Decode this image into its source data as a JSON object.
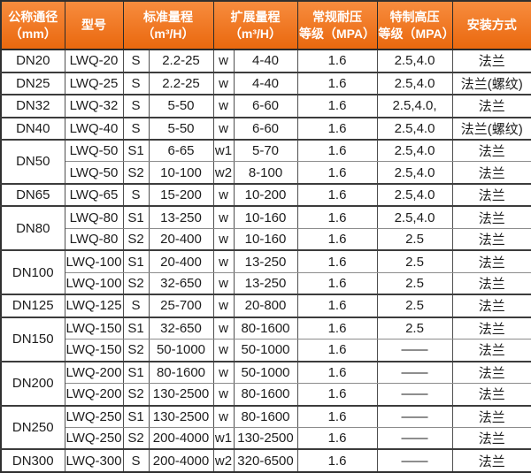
{
  "header": {
    "diameter": "公称通径\n（mm）",
    "model": "型号",
    "standard_range": "标准量程\n（m³/H）",
    "extended_range": "扩展量程\n（m³/H）",
    "normal_pressure": "常规耐压\n等级（MPA）",
    "high_pressure": "特制高压\n等级（MPA）",
    "installation": "安装方式"
  },
  "colors": {
    "header_top": "#f78c3e",
    "header_bottom": "#ea680e",
    "header_text": "#ffffff",
    "body_text": "#1d1d1d",
    "grid_dark": "#3c3c3c",
    "grid_light": "#8c8c8c"
  },
  "groups": [
    {
      "diameter": "DN20",
      "rows": [
        {
          "model": "LWQ-20",
          "standard_code": "S",
          "standard_range": "2.2-25",
          "extended_code": "w",
          "extended_range": "4-40",
          "normal_pressure": "1.6",
          "high_pressure": "2.5,4.0",
          "installation": "法兰"
        }
      ]
    },
    {
      "diameter": "DN25",
      "rows": [
        {
          "model": "LWQ-25",
          "standard_code": "S",
          "standard_range": "2.2-25",
          "extended_code": "w",
          "extended_range": "4-40",
          "normal_pressure": "1.6",
          "high_pressure": "2.5,4.0",
          "installation": "法兰(螺纹)"
        }
      ]
    },
    {
      "diameter": "DN32",
      "rows": [
        {
          "model": "LWQ-32",
          "standard_code": "S",
          "standard_range": "5-50",
          "extended_code": "w",
          "extended_range": "6-60",
          "normal_pressure": "1.6",
          "high_pressure": "2.5,4.0,",
          "installation": "法兰"
        }
      ]
    },
    {
      "diameter": "DN40",
      "rows": [
        {
          "model": "LWQ-40",
          "standard_code": "S",
          "standard_range": "5-50",
          "extended_code": "w",
          "extended_range": "6-60",
          "normal_pressure": "1.6",
          "high_pressure": "2.5,4.0",
          "installation": "法兰(螺纹)"
        }
      ]
    },
    {
      "diameter": "DN50",
      "rows": [
        {
          "model": "LWQ-50",
          "standard_code": "S1",
          "standard_range": "6-65",
          "extended_code": "w1",
          "extended_range": "5-70",
          "normal_pressure": "1.6",
          "high_pressure": "2.5,4.0",
          "installation": "法兰"
        },
        {
          "model": "LWQ-50",
          "standard_code": "S2",
          "standard_range": "10-100",
          "extended_code": "w2",
          "extended_range": "8-100",
          "normal_pressure": "1.6",
          "high_pressure": "2.5,4.0",
          "installation": "法兰"
        }
      ]
    },
    {
      "diameter": "DN65",
      "rows": [
        {
          "model": "LWQ-65",
          "standard_code": "S",
          "standard_range": "15-200",
          "extended_code": "w",
          "extended_range": "10-200",
          "normal_pressure": "1.6",
          "high_pressure": "2.5,4.0",
          "installation": "法兰"
        }
      ]
    },
    {
      "diameter": "DN80",
      "rows": [
        {
          "model": "LWQ-80",
          "standard_code": "S1",
          "standard_range": "13-250",
          "extended_code": "w",
          "extended_range": "10-160",
          "normal_pressure": "1.6",
          "high_pressure": "2.5,4.0",
          "installation": "法兰"
        },
        {
          "model": "LWQ-80",
          "standard_code": "S2",
          "standard_range": "20-400",
          "extended_code": "w",
          "extended_range": "10-160",
          "normal_pressure": "1.6",
          "high_pressure": "2.5",
          "installation": "法兰"
        }
      ]
    },
    {
      "diameter": "DN100",
      "rows": [
        {
          "model": "LWQ-100",
          "standard_code": "S1",
          "standard_range": "20-400",
          "extended_code": "w",
          "extended_range": "13-250",
          "normal_pressure": "1.6",
          "high_pressure": "2.5",
          "installation": "法兰"
        },
        {
          "model": "LWQ-100",
          "standard_code": "S2",
          "standard_range": "32-650",
          "extended_code": "w",
          "extended_range": "13-250",
          "normal_pressure": "1.6",
          "high_pressure": "2.5",
          "installation": "法兰"
        }
      ]
    },
    {
      "diameter": "DN125",
      "rows": [
        {
          "model": "LWQ-125",
          "standard_code": "S",
          "standard_range": "25-700",
          "extended_code": "w",
          "extended_range": "20-800",
          "normal_pressure": "1.6",
          "high_pressure": "2.5",
          "installation": "法兰"
        }
      ]
    },
    {
      "diameter": "DN150",
      "rows": [
        {
          "model": "LWQ-150",
          "standard_code": "S1",
          "standard_range": "32-650",
          "extended_code": "w",
          "extended_range": "80-1600",
          "normal_pressure": "1.6",
          "high_pressure": "2.5",
          "installation": "法兰"
        },
        {
          "model": "LWQ-150",
          "standard_code": "S2",
          "standard_range": "50-1000",
          "extended_code": "w",
          "extended_range": "50-1000",
          "normal_pressure": "1.6",
          "high_pressure": "——",
          "installation": "法兰"
        }
      ]
    },
    {
      "diameter": "DN200",
      "rows": [
        {
          "model": "LWQ-200",
          "standard_code": "S1",
          "standard_range": "80-1600",
          "extended_code": "w",
          "extended_range": "50-1000",
          "normal_pressure": "1.6",
          "high_pressure": "——",
          "installation": "法兰"
        },
        {
          "model": "LWQ-200",
          "standard_code": "S2",
          "standard_range": "130-2500",
          "extended_code": "w",
          "extended_range": "80-1600",
          "normal_pressure": "1.6",
          "high_pressure": "——",
          "installation": "法兰"
        }
      ]
    },
    {
      "diameter": "DN250",
      "rows": [
        {
          "model": "LWQ-250",
          "standard_code": "S1",
          "standard_range": "130-2500",
          "extended_code": "w",
          "extended_range": "80-1600",
          "normal_pressure": "1.6",
          "high_pressure": "——",
          "installation": "法兰"
        },
        {
          "model": "LWQ-250",
          "standard_code": "S2",
          "standard_range": "200-4000",
          "extended_code": "w1",
          "extended_range": "130-2500",
          "normal_pressure": "1.6",
          "high_pressure": "——",
          "installation": "法兰"
        }
      ]
    },
    {
      "diameter": "DN300",
      "rows": [
        {
          "model": "LWQ-300",
          "standard_code": "S",
          "standard_range": "200-4000",
          "extended_code": "w2",
          "extended_range": "320-6500",
          "normal_pressure": "1.6",
          "high_pressure": "——",
          "installation": "法兰"
        }
      ]
    }
  ]
}
